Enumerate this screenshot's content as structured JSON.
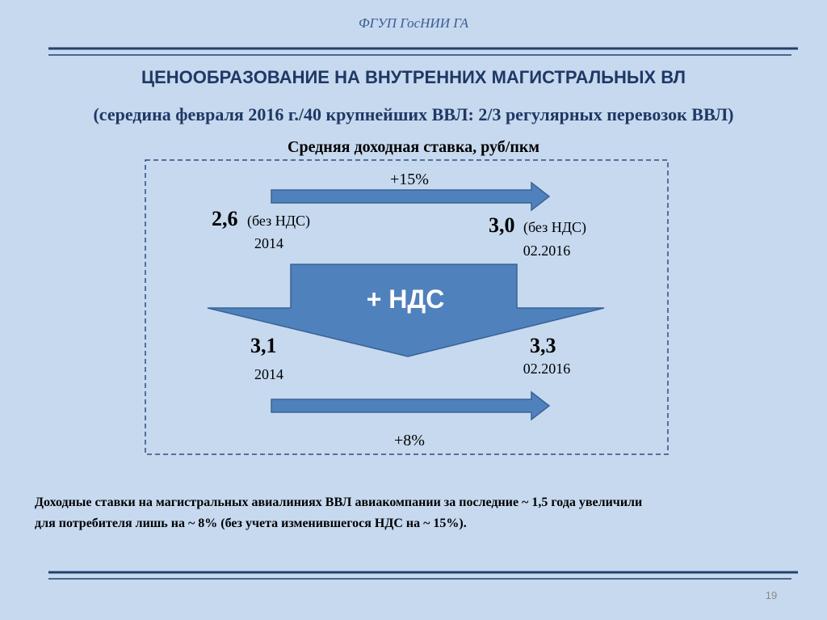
{
  "header": {
    "org": "ФГУП ГосНИИ ГА"
  },
  "title": "ЦЕНООБРАЗОВАНИЕ НА ВНУТРЕННИХ МАГИСТРАЛЬНЫХ ВЛ",
  "subtitle": "(середина февраля 2016 г./40 крупнейших ВВЛ: 2/3 регулярных перевозок ВВЛ)",
  "diagram": {
    "heading": "Средняя доходная ставка, руб/пкм",
    "top_change": "+15%",
    "before_vat": {
      "left": {
        "value": "2,6",
        "note": "(без НДС)",
        "date": "2014"
      },
      "right": {
        "value": "3,0",
        "note": "(без НДС)",
        "date": "02.2016"
      }
    },
    "vat_label": "+ НДС",
    "with_vat": {
      "left": {
        "value": "3,1",
        "date": "2014"
      },
      "right": {
        "value": "3,3",
        "date": "02.2016"
      }
    },
    "bottom_change": "+8%"
  },
  "note": {
    "lines": [
      "Доходные ставки на магистральных авиалиниях ВВЛ авиакомпании за последние ~ 1,5 года увеличили",
      "для потребителя лишь на ~ 8% (без учета изменившегося НДС на ~ 15%)."
    ]
  },
  "page_number": "19"
}
